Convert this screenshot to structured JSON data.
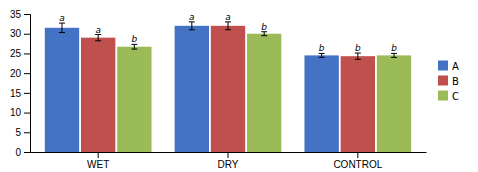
{
  "chart_data": {
    "type": "bar",
    "categories": [
      "WET",
      "DRY",
      "CONTROL"
    ],
    "series": [
      {
        "name": "A",
        "color": "#4472C4",
        "values": [
          31.5,
          32.0,
          24.5
        ],
        "errors": [
          1.2,
          1.0,
          0.5
        ],
        "annotations": [
          "a",
          "a",
          "b"
        ]
      },
      {
        "name": "B",
        "color": "#C0504D",
        "values": [
          29.0,
          32.0,
          24.3
        ],
        "errors": [
          0.8,
          1.0,
          0.8
        ],
        "annotations": [
          "a",
          "a",
          "b"
        ]
      },
      {
        "name": "C",
        "color": "#9BBB59",
        "values": [
          26.7,
          30.0,
          24.5
        ],
        "errors": [
          0.6,
          0.5,
          0.5
        ],
        "annotations": [
          "b",
          "b",
          "b"
        ]
      }
    ],
    "ylim": [
      0,
      35
    ],
    "yticks": [
      0,
      5,
      10,
      15,
      20,
      25,
      30,
      35
    ],
    "grid": false,
    "legend": "right"
  }
}
